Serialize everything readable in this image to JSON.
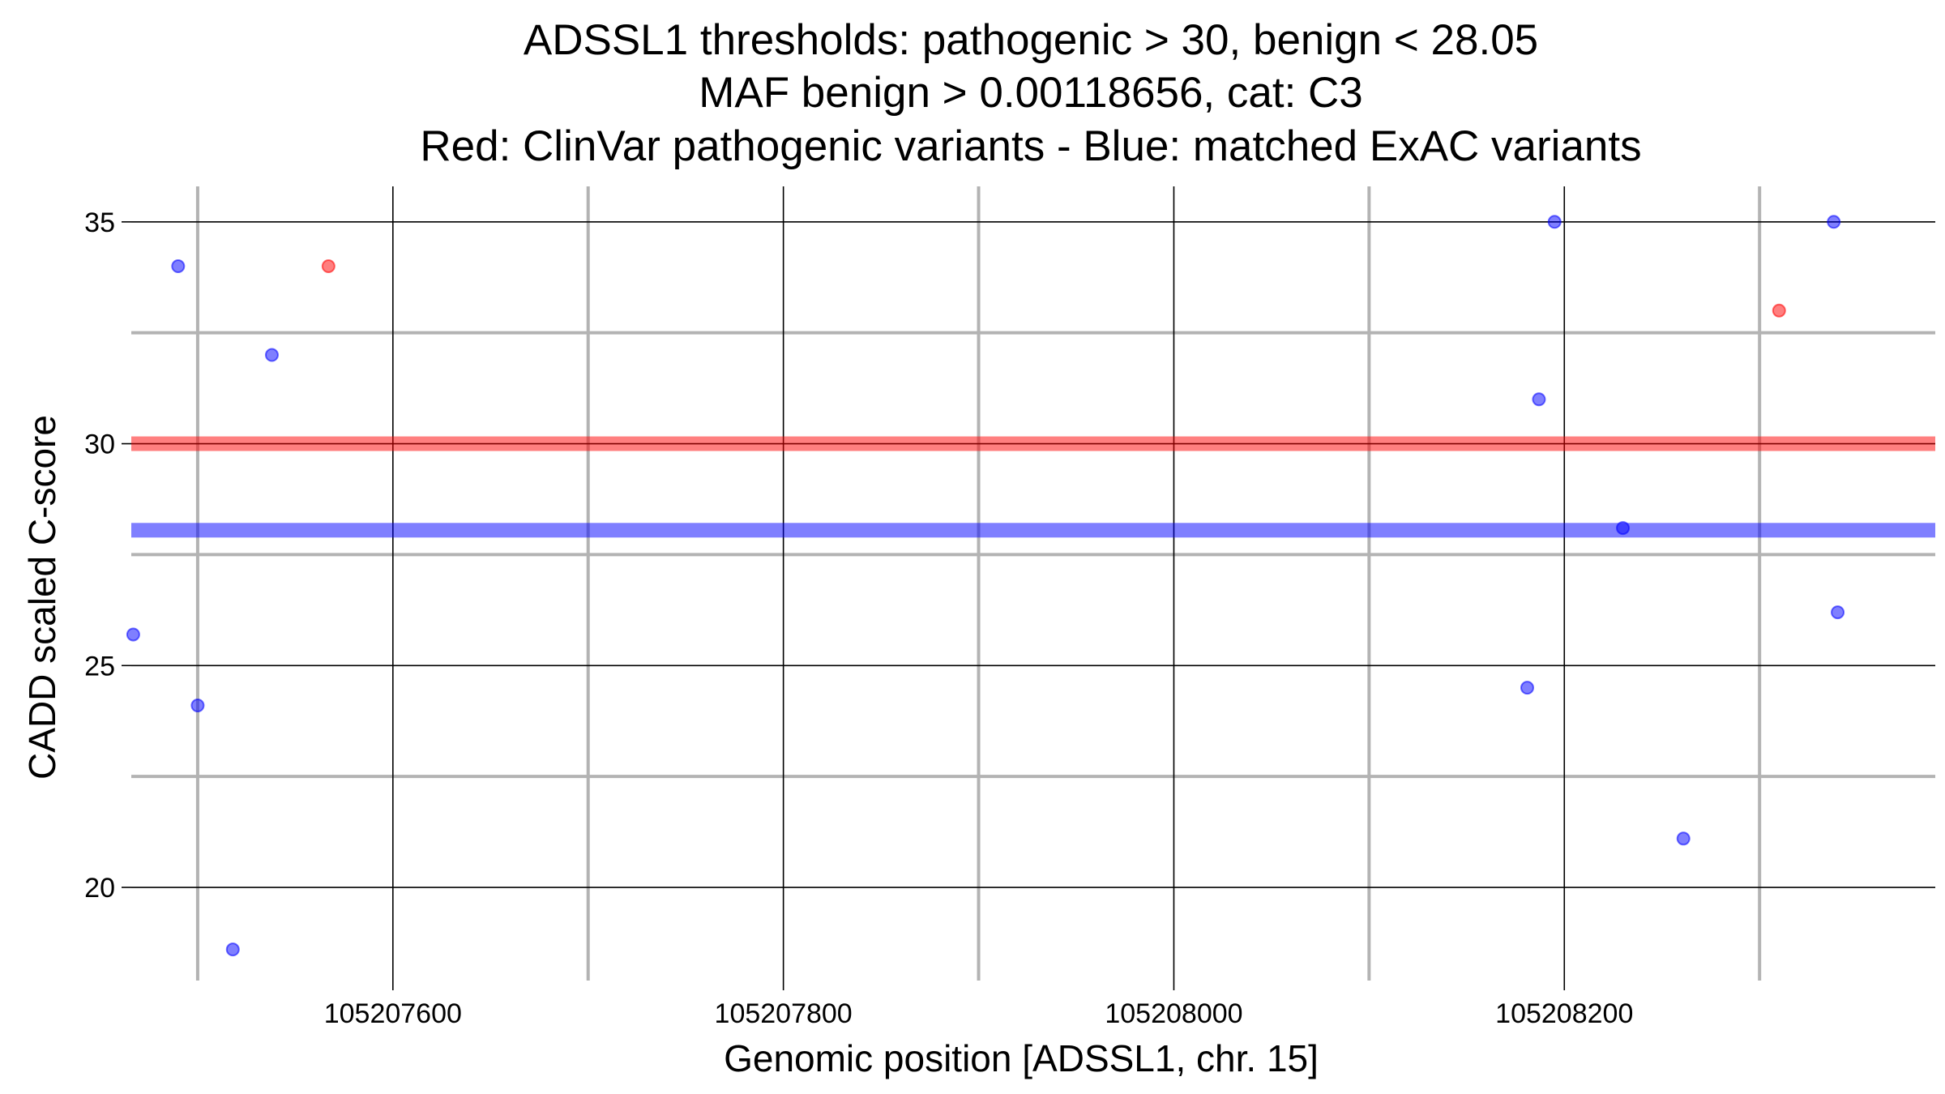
{
  "chart_data": {
    "type": "scatter",
    "title_lines": [
      "ADSSL1 thresholds: pathogenic > 30, benign < 28.05",
      "MAF benign > 0.00118656, cat: C3",
      "Red: ClinVar pathogenic variants - Blue: matched ExAC variants"
    ],
    "xlabel": "Genomic position [ADSSL1, chr. 15]",
    "ylabel": "CADD scaled C-score",
    "xlim": [
      105207466,
      105208390
    ],
    "ylim": [
      17.9,
      35.8
    ],
    "x_ticks": [
      105207600,
      105207800,
      105208000,
      105208200
    ],
    "x_tick_labels": [
      "105207600",
      "105207800",
      "105208000",
      "105208200"
    ],
    "x_minor_grid": [
      105207500,
      105207700,
      105207900,
      105208100,
      105208300
    ],
    "y_ticks": [
      20,
      25,
      30,
      35
    ],
    "y_tick_labels": [
      "20",
      "25",
      "30",
      "35"
    ],
    "y_minor_grid": [
      22.5,
      27.5,
      32.5
    ],
    "thresholds": [
      {
        "name": "pathogenic",
        "value": 30,
        "color": "#ff0000"
      },
      {
        "name": "benign",
        "value": 28.05,
        "color": "#0000ff"
      }
    ],
    "grid": true,
    "series": [
      {
        "color": "#ff0000",
        "points": [
          {
            "x": 105207567,
            "y": 34.0
          },
          {
            "x": 105208310,
            "y": 33.0
          }
        ]
      },
      {
        "color": "#0000ff",
        "points": [
          {
            "x": 105207467,
            "y": 25.7
          },
          {
            "x": 105207490,
            "y": 34.0
          },
          {
            "x": 105207500,
            "y": 24.1
          },
          {
            "x": 105207518,
            "y": 18.6
          },
          {
            "x": 105207538,
            "y": 32.0
          },
          {
            "x": 105208181,
            "y": 24.5
          },
          {
            "x": 105208187,
            "y": 31.0
          },
          {
            "x": 105208195,
            "y": 35.0
          },
          {
            "x": 105208230,
            "y": 28.1
          },
          {
            "x": 105208261,
            "y": 21.1
          },
          {
            "x": 105208338,
            "y": 35.0
          },
          {
            "x": 105208340,
            "y": 26.2
          }
        ]
      }
    ]
  }
}
